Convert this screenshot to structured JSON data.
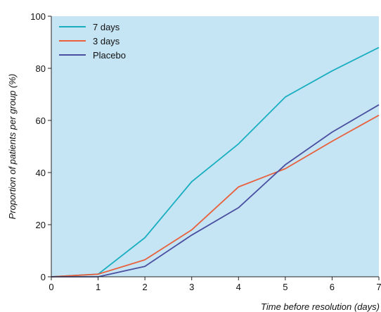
{
  "chart_data": {
    "type": "line",
    "title": "",
    "xlabel": "Time before resolution (days)",
    "ylabel": "Proportion of patients per group (%)",
    "xlim": [
      0,
      7
    ],
    "ylim": [
      0,
      100
    ],
    "x_ticks": [
      "0",
      "1",
      "2",
      "3",
      "4",
      "5",
      "6",
      "7"
    ],
    "y_ticks": [
      "0",
      "20",
      "40",
      "60",
      "80",
      "100"
    ],
    "grid": false,
    "legend_position": "top-left",
    "plot_background": "#c5e4f4",
    "x": [
      0,
      1,
      2,
      3,
      4,
      5,
      6,
      7
    ],
    "series": [
      {
        "name": "7 days",
        "color": "#1aafc0",
        "values": [
          0,
          1,
          15,
          36.5,
          51,
          69,
          79,
          88
        ]
      },
      {
        "name": "3 days",
        "color": "#e8603c",
        "values": [
          0,
          1,
          6.5,
          18,
          34.5,
          41.5,
          52,
          62
        ]
      },
      {
        "name": "Placebo",
        "color": "#4a4fa0",
        "values": [
          0,
          0,
          4,
          16,
          26.5,
          43,
          55.5,
          66
        ]
      }
    ]
  }
}
